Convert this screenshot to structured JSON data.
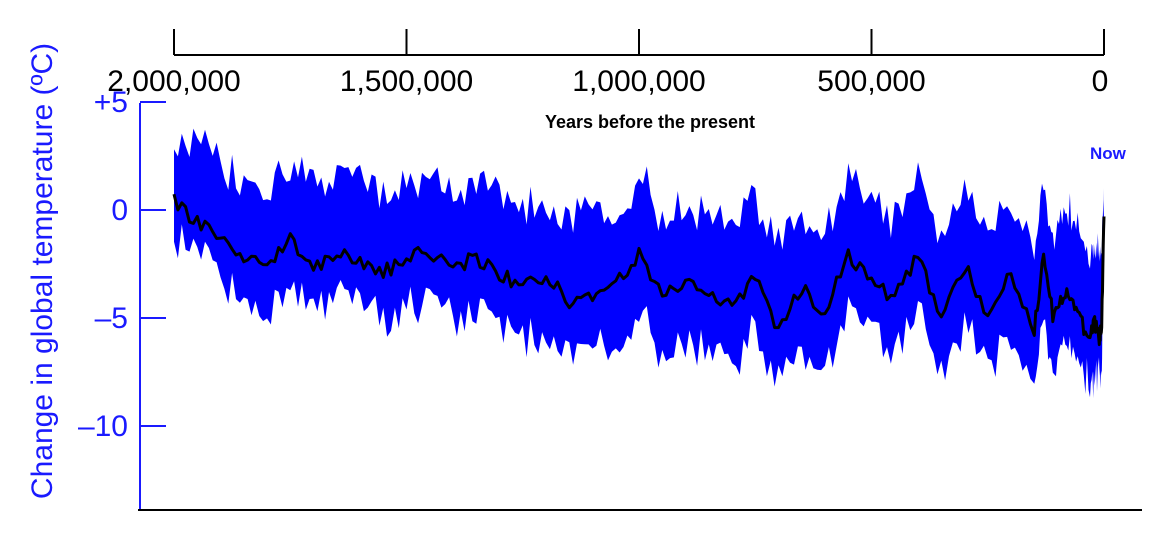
{
  "chart_data": {
    "type": "area",
    "xlabel": "Years before the present",
    "ylabel": "Change in global temperature (ºC)",
    "annotation": "Now",
    "x_axis": {
      "ticks": [
        2000000,
        1500000,
        1000000,
        500000,
        0
      ],
      "tick_labels": [
        "2,000,000",
        "1,500,000",
        "1,000,000",
        "500,000",
        "0"
      ],
      "range": [
        2000000,
        0
      ]
    },
    "y_axis": {
      "ticks": [
        5,
        0,
        -5,
        -10
      ],
      "tick_labels": [
        "+5",
        "0",
        "–5",
        "–10"
      ],
      "range": [
        -14,
        5
      ]
    },
    "colors": {
      "band": "#0000ff",
      "mean": "#000000",
      "y_axis": "#1a1aff"
    },
    "series": [
      {
        "x": [
          2000000,
          1950000,
          1900000,
          1850000,
          1800000,
          1750000,
          1700000,
          1650000,
          1600000,
          1550000,
          1500000,
          1450000,
          1400000,
          1350000,
          1300000,
          1250000,
          1200000,
          1150000,
          1100000,
          1050000,
          1000000,
          950000,
          900000,
          850000,
          800000,
          750000,
          700000,
          650000,
          600000,
          550000,
          500000,
          450000,
          400000,
          350000,
          300000,
          250000,
          200000,
          150000,
          130000,
          110000,
          90000,
          70000,
          50000,
          30000,
          20000,
          10000,
          5000,
          0
        ],
        "mean": [
          0.5,
          -0.6,
          -1.3,
          -2.1,
          -2.5,
          -1.3,
          -2.6,
          -2.0,
          -2.4,
          -2.9,
          -2.2,
          -1.9,
          -2.7,
          -2.2,
          -3.0,
          -3.5,
          -3.1,
          -4.2,
          -3.9,
          -3.3,
          -2.1,
          -3.9,
          -3.4,
          -4.0,
          -4.5,
          -3.1,
          -5.5,
          -3.6,
          -4.7,
          -2.0,
          -3.3,
          -4.1,
          -2.0,
          -5.0,
          -2.6,
          -4.8,
          -3.0,
          -5.5,
          -2.1,
          -4.9,
          -4.0,
          -3.8,
          -5.2,
          -5.9,
          -5.2,
          -6.0,
          -5.2,
          -0.3
        ],
        "upper": [
          3.1,
          2.8,
          2.2,
          1.3,
          0.9,
          2.1,
          1.0,
          1.7,
          1.2,
          0.7,
          1.4,
          1.6,
          0.8,
          1.3,
          0.6,
          0.1,
          0.5,
          -0.6,
          -0.3,
          0.3,
          1.5,
          -0.3,
          0.2,
          -0.4,
          -0.9,
          0.5,
          -1.9,
          0.0,
          -1.1,
          1.6,
          0.3,
          -0.5,
          1.6,
          -1.4,
          1.0,
          -1.2,
          0.6,
          -1.9,
          1.5,
          -1.3,
          -0.4,
          -0.2,
          -1.6,
          -2.3,
          -1.6,
          -2.4,
          -1.6,
          1.0
        ],
        "lower": [
          -1.2,
          -2.3,
          -3.2,
          -4.1,
          -4.8,
          -3.4,
          -4.6,
          -4.1,
          -4.5,
          -5.0,
          -4.4,
          -4.1,
          -5.1,
          -4.6,
          -5.4,
          -6.0,
          -5.6,
          -6.9,
          -6.5,
          -5.9,
          -4.5,
          -6.6,
          -5.9,
          -6.6,
          -7.2,
          -5.6,
          -8.2,
          -6.3,
          -7.5,
          -4.6,
          -5.8,
          -6.8,
          -4.5,
          -7.7,
          -5.3,
          -7.5,
          -5.6,
          -8.1,
          -4.5,
          -7.4,
          -6.6,
          -6.3,
          -7.6,
          -8.0,
          -7.4,
          -7.9,
          -7.3,
          -1.3
        ]
      }
    ]
  }
}
